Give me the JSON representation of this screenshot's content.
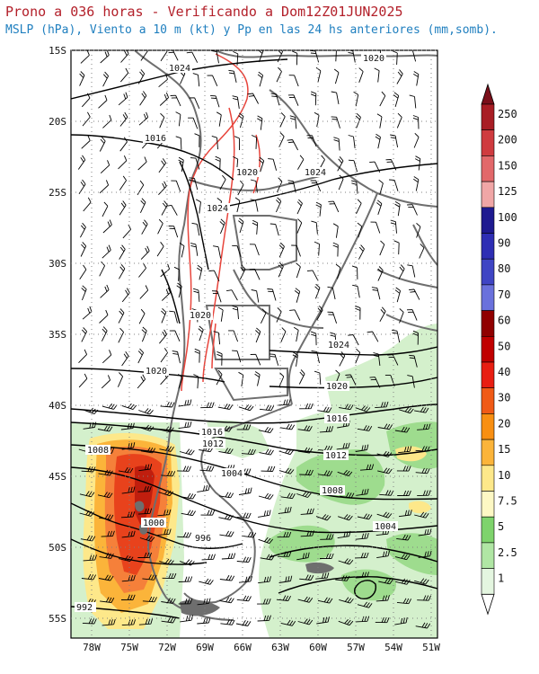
{
  "header": {
    "title": "Prono a 036 horas - Verificando a Dom12Z01JUN2025",
    "subtitle": "MSLP (hPa), Viento a 10 m (kt) y Pp en las 24 hs anteriores (mm,somb)."
  },
  "map": {
    "lat_ticks": [
      "15S",
      "20S",
      "25S",
      "30S",
      "35S",
      "40S",
      "45S",
      "50S",
      "55S"
    ],
    "lon_ticks": [
      "78W",
      "75W",
      "72W",
      "69W",
      "66W",
      "63W",
      "60W",
      "57W",
      "54W",
      "51W"
    ],
    "isobar_labels": [
      "1024",
      "1020",
      "1016",
      "1020",
      "1024",
      "1024",
      "1020",
      "1024",
      "1020",
      "1020",
      "1016",
      "1016",
      "1012",
      "1012",
      "1008",
      "1004",
      "1008",
      "1004",
      "1000",
      "996",
      "992"
    ],
    "colors": {
      "isobar": "#000000",
      "coast": "#6e6e6e",
      "terrain_red": "#e8453c",
      "precip_light": "#c8ecc0",
      "precip_mid": "#7fd070",
      "precip_heavy": "#e8421c"
    }
  },
  "colorbar": {
    "labels": [
      "250",
      "200",
      "150",
      "125",
      "100",
      "90",
      "80",
      "70",
      "60",
      "50",
      "40",
      "30",
      "20",
      "15",
      "10",
      "7.5",
      "5",
      "2.5",
      "1"
    ],
    "colors": [
      "#a81d24",
      "#cf3b3f",
      "#e2686a",
      "#f0a6a6",
      "#1e1a90",
      "#2e2eb4",
      "#3f45c4",
      "#6a71dc",
      "#900000",
      "#c00000",
      "#e81e12",
      "#f05a16",
      "#f88f12",
      "#fbb43a",
      "#fde88a",
      "#fdf8c4",
      "#7ed36c",
      "#b0e6a4",
      "#e4f6e0"
    ]
  }
}
